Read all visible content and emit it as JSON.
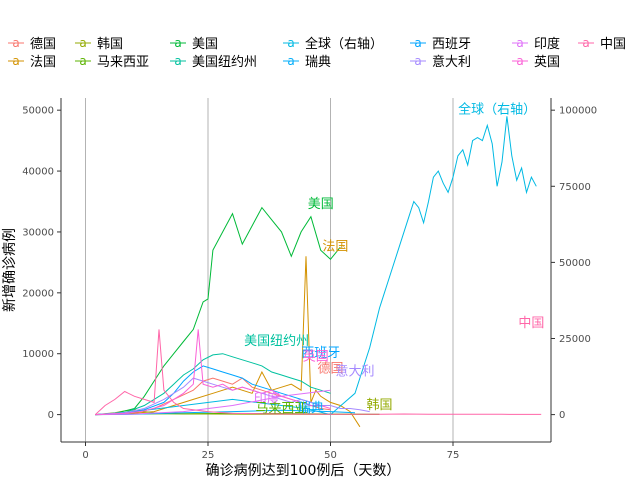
{
  "chart_data": {
    "type": "line",
    "xlabel": "确诊病例达到100例后（天数）",
    "ylabel": "新增确诊病例",
    "xlim": [
      -5,
      95
    ],
    "ylim": [
      -4500,
      52000
    ],
    "y2lim": [
      -9000,
      104000
    ],
    "y2_scale": 2,
    "x_ticks": [
      0,
      25,
      50,
      75
    ],
    "y_ticks": [
      0,
      10000,
      20000,
      30000,
      40000,
      50000
    ],
    "y2_ticks": [
      0,
      25000,
      50000,
      75000,
      100000
    ],
    "grid": "vertical-major",
    "legend_position": "top",
    "legend_key_glyph": "a",
    "series": [
      {
        "name": "德国",
        "color": "#F8766D",
        "x": [
          2,
          6,
          10,
          14,
          18,
          22,
          24,
          26,
          28,
          30,
          32,
          34,
          36,
          38,
          40,
          42,
          44,
          46,
          48,
          50
        ],
        "y": [
          0,
          100,
          300,
          1000,
          2500,
          4000,
          5500,
          6000,
          5500,
          5000,
          6000,
          4500,
          4000,
          3500,
          3000,
          2500,
          2000,
          1500,
          1000,
          800
        ]
      },
      {
        "name": "法国",
        "color": "#D39200",
        "x": [
          2,
          8,
          14,
          18,
          22,
          26,
          30,
          34,
          36,
          38,
          40,
          42,
          44,
          45,
          46,
          47,
          48,
          49,
          50,
          52,
          54,
          56
        ],
        "y": [
          0,
          100,
          500,
          1500,
          2500,
          3500,
          4500,
          3500,
          7000,
          4000,
          4500,
          5000,
          4000,
          26000,
          2000,
          4000,
          3000,
          2500,
          2000,
          1500,
          500,
          -2000
        ]
      },
      {
        "name": "韩国",
        "color": "#93AA00",
        "x": [
          2,
          6,
          8,
          10,
          12,
          14,
          16,
          18,
          20,
          25,
          30,
          35,
          40,
          45,
          50,
          55,
          60
        ],
        "y": [
          0,
          300,
          600,
          800,
          500,
          300,
          200,
          150,
          100,
          100,
          80,
          60,
          50,
          40,
          30,
          20,
          10
        ]
      },
      {
        "name": "马来西亚",
        "color": "#5BB300",
        "x": [
          2,
          10,
          20,
          30,
          40,
          50,
          60
        ],
        "y": [
          0,
          100,
          150,
          200,
          180,
          100,
          50
        ]
      },
      {
        "name": "美国",
        "color": "#00BA38",
        "x": [
          2,
          6,
          10,
          12,
          14,
          16,
          18,
          20,
          22,
          24,
          25,
          26,
          28,
          30,
          32,
          34,
          36,
          38,
          40,
          42,
          44,
          46,
          48,
          50,
          52
        ],
        "y": [
          0,
          200,
          1000,
          3000,
          5500,
          8000,
          10000,
          12000,
          14000,
          18500,
          19000,
          27000,
          30000,
          33000,
          28000,
          31000,
          34000,
          32000,
          30000,
          26000,
          30000,
          32500,
          27000,
          25500,
          27500
        ]
      },
      {
        "name": "美国纽约州",
        "color": "#00C19F",
        "x": [
          2,
          8,
          12,
          16,
          18,
          20,
          22,
          24,
          26,
          28,
          30,
          32,
          34,
          36,
          38,
          40,
          42,
          44,
          46,
          48,
          50
        ],
        "y": [
          0,
          300,
          1500,
          3500,
          5000,
          6500,
          7500,
          9000,
          9800,
          10000,
          9500,
          9000,
          8500,
          8000,
          7000,
          6500,
          6000,
          5500,
          4500,
          4000,
          3500
        ]
      },
      {
        "name": "全球（右轴）",
        "color": "#00B9E3",
        "right_axis": true,
        "x": [
          2,
          10,
          20,
          30,
          40,
          45,
          50,
          55,
          58,
          60,
          62,
          64,
          66,
          67,
          68,
          69,
          70,
          71,
          72,
          73,
          74,
          75,
          76,
          77,
          78,
          79,
          80,
          81,
          82,
          83,
          84,
          85,
          86,
          87,
          88,
          89,
          90,
          91,
          92
        ],
        "y": [
          0,
          1000,
          3000,
          5000,
          3000,
          2000,
          0,
          7000,
          22000,
          35000,
          45000,
          55000,
          65000,
          70000,
          68000,
          63000,
          70000,
          78000,
          80000,
          76000,
          73000,
          78000,
          85000,
          87000,
          82000,
          90000,
          91000,
          90000,
          95000,
          89000,
          75000,
          83000,
          98000,
          85000,
          77000,
          81000,
          73000,
          78000,
          75000
        ]
      },
      {
        "name": "瑞典",
        "color": "#00ADFA",
        "x": [
          2,
          10,
          20,
          30,
          40,
          45,
          50,
          55
        ],
        "y": [
          0,
          50,
          300,
          500,
          700,
          600,
          500,
          300
        ]
      },
      {
        "name": "西班牙",
        "color": "#00A5FF",
        "x": [
          2,
          8,
          12,
          16,
          18,
          20,
          22,
          24,
          26,
          28,
          30,
          32,
          34,
          36,
          38,
          40,
          42,
          44,
          46,
          48
        ],
        "y": [
          0,
          200,
          800,
          2000,
          3500,
          5500,
          7000,
          8000,
          7500,
          7000,
          6500,
          6000,
          5000,
          4500,
          4000,
          3500,
          3000,
          2500,
          2000,
          1500
        ]
      },
      {
        "name": "意大利",
        "color": "#A58AFF",
        "x": [
          2,
          8,
          12,
          16,
          18,
          20,
          22,
          24,
          26,
          28,
          30,
          32,
          34,
          36,
          38,
          40,
          42,
          44,
          46,
          48,
          50,
          52,
          54,
          56,
          58
        ],
        "y": [
          0,
          300,
          1000,
          2500,
          3500,
          4500,
          6000,
          5500,
          5000,
          4500,
          4000,
          4500,
          4000,
          3500,
          3000,
          2500,
          2000,
          2500,
          2000,
          1500,
          1500,
          1000,
          1000,
          800,
          500
        ]
      },
      {
        "name": "印度",
        "color": "#DF70F8",
        "x": [
          2,
          10,
          20,
          30,
          40,
          45,
          50
        ],
        "y": [
          0,
          100,
          500,
          1500,
          3000,
          3500,
          4000
        ]
      },
      {
        "name": "英国",
        "color": "#FB61D7",
        "x": [
          2,
          8,
          12,
          16,
          18,
          20,
          22,
          23,
          24,
          26,
          28,
          30,
          32,
          34,
          36,
          38,
          40,
          42,
          44,
          46,
          48,
          50
        ],
        "y": [
          0,
          200,
          600,
          1500,
          2500,
          3500,
          5000,
          14000,
          5000,
          4500,
          5000,
          4000,
          4500,
          4000,
          3500,
          4000,
          3000,
          2500,
          2000,
          1500,
          1500,
          1000
        ]
      },
      {
        "name": "中国",
        "color": "#FF66A8",
        "x": [
          2,
          4,
          6,
          8,
          10,
          12,
          14,
          15,
          16,
          18,
          20,
          25,
          30,
          40,
          50,
          60,
          65,
          70,
          75,
          80,
          85,
          90,
          93
        ],
        "y": [
          0,
          1500,
          2500,
          3800,
          3000,
          2500,
          2000,
          14000,
          4000,
          2000,
          1000,
          500,
          200,
          100,
          50,
          50,
          100,
          50,
          50,
          60,
          50,
          40,
          30
        ]
      }
    ],
    "annotations": [
      {
        "text": "全球（右轴）",
        "x": 84,
        "y": 50000,
        "color": "#00B9E3"
      },
      {
        "text": "美国",
        "x": 48,
        "y": 34500,
        "color": "#00BA38"
      },
      {
        "text": "法国",
        "x": 51,
        "y": 27500,
        "color": "#D39200"
      },
      {
        "text": "中国",
        "x": 91,
        "y": 15000,
        "color": "#FF66A8"
      },
      {
        "text": "美国纽约州",
        "x": 39,
        "y": 12000,
        "color": "#00C19F"
      },
      {
        "text": "西班牙",
        "x": 48,
        "y": 10000,
        "color": "#00A5FF"
      },
      {
        "text": "英国",
        "x": 47,
        "y": 9500,
        "color": "#FB61D7"
      },
      {
        "text": "德国",
        "x": 50,
        "y": 7500,
        "color": "#F8766D"
      },
      {
        "text": "意大利",
        "x": 55,
        "y": 7000,
        "color": "#A58AFF"
      },
      {
        "text": "印度",
        "x": 37,
        "y": 2500,
        "color": "#DF70F8"
      },
      {
        "text": "韩国",
        "x": 60,
        "y": 1500,
        "color": "#93AA00"
      },
      {
        "text": "马来西亚",
        "x": 40,
        "y": 900,
        "color": "#5BB300"
      },
      {
        "text": "瑞典",
        "x": 46,
        "y": 1000,
        "color": "#00ADFA"
      }
    ]
  }
}
